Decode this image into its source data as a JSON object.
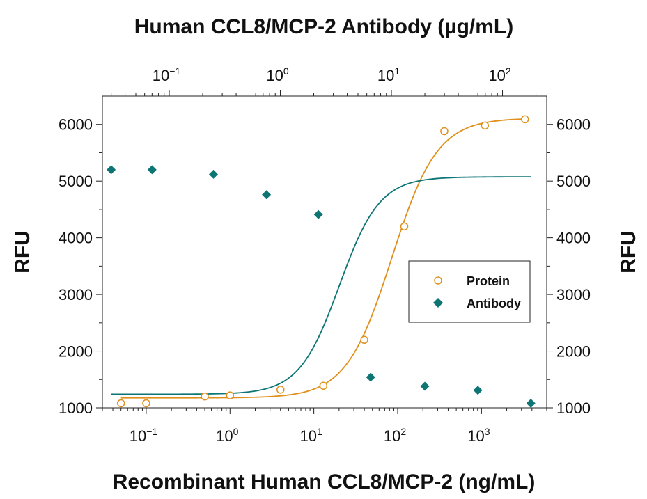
{
  "chart_data": {
    "type": "scatter",
    "title": "Human CCL8/MCP-2 Antibody (µg/mL)",
    "xlabel": "Recombinant Human CCL8/MCP-2 (ng/mL)",
    "ylabel": "RFU",
    "ylabel_right": "RFU",
    "x_scale": "log",
    "xlim": [
      0.03,
      6000
    ],
    "ylim": [
      1000,
      6500
    ],
    "yticks": [
      1000,
      2000,
      3000,
      4000,
      5000,
      6000
    ],
    "xticks_bottom": [
      {
        "value": 0.1,
        "base": "10",
        "exp": "−1"
      },
      {
        "value": 1,
        "base": "10",
        "exp": "0"
      },
      {
        "value": 10,
        "base": "10",
        "exp": "1"
      },
      {
        "value": 100,
        "base": "10",
        "exp": "2"
      },
      {
        "value": 1000,
        "base": "10",
        "exp": "3"
      }
    ],
    "top_axis": {
      "scale": "log",
      "xlim": [
        0.025,
        250
      ],
      "xticks": [
        {
          "value": 0.1,
          "base": "10",
          "exp": "−1"
        },
        {
          "value": 1,
          "base": "10",
          "exp": "0"
        },
        {
          "value": 10,
          "base": "10",
          "exp": "1"
        },
        {
          "value": 100,
          "base": "10",
          "exp": "2"
        }
      ]
    },
    "grid": false,
    "legend_position": "center-right",
    "series": [
      {
        "name": "Protein",
        "marker": "open-circle",
        "color": "#E0901A",
        "axis": "bottom",
        "x": [
          0.05,
          0.1,
          0.5,
          1,
          4,
          13,
          40,
          120,
          360,
          1100,
          3300
        ],
        "y": [
          1080,
          1080,
          1200,
          1220,
          1320,
          1390,
          2200,
          4200,
          5880,
          5980,
          6090
        ],
        "fit": {
          "bottom": 1175,
          "top": 6110,
          "ec50": 85,
          "hill": 1.6
        }
      },
      {
        "name": "Antibody",
        "marker": "filled-diamond",
        "color": "#0E7575",
        "axis": "top",
        "x": [
          0.03,
          0.07,
          0.25,
          0.75,
          2.2,
          6.5,
          20,
          60,
          180
        ],
        "y": [
          5200,
          5200,
          5120,
          4760,
          4410,
          1540,
          1380,
          1310,
          1080
        ],
        "fit": {
          "bottom": 1240,
          "top": 5075,
          "ec50": 3.4,
          "hill": 2.4
        }
      }
    ]
  }
}
